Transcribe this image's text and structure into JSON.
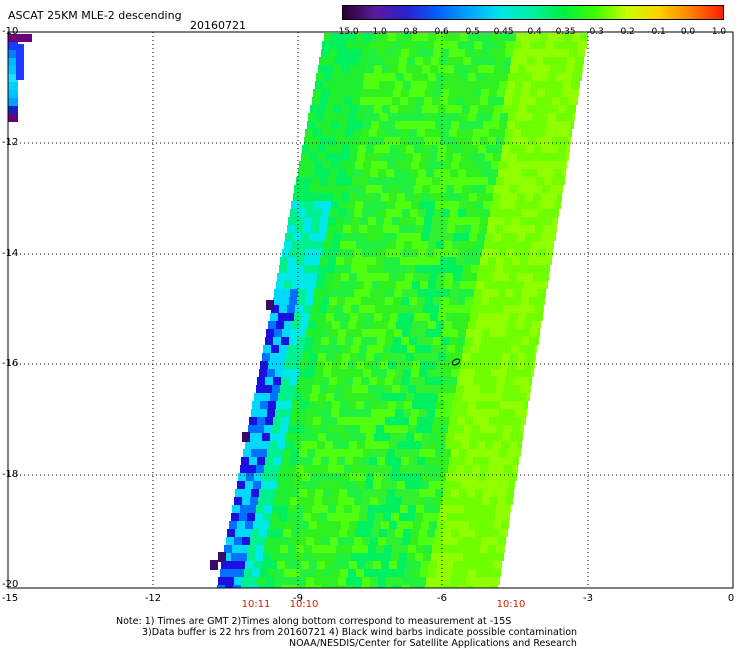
{
  "header": {
    "title": "ASCAT 25KM MLE-2 descending",
    "date": "20160721"
  },
  "colorbar": {
    "labels": [
      "-15.0",
      "-1.0",
      "-0.8",
      "-0.6",
      "-0.5",
      "-0.45",
      "-0.4",
      "-0.35",
      "-0.3",
      "-0.2",
      "-0.1",
      "0.0",
      "1.0"
    ],
    "colors": [
      "#2a0033",
      "#5a1a9a",
      "#2a20d0",
      "#0060ff",
      "#00a8ff",
      "#00e6e6",
      "#00f0a0",
      "#00f040",
      "#40ff00",
      "#c8ff00",
      "#ffd000",
      "#ff8000",
      "#ff2000"
    ]
  },
  "axes": {
    "y_ticks": [
      "-10",
      "-12",
      "-14",
      "-16",
      "-18",
      "-20"
    ],
    "x_ticks": [
      "-15",
      "-12",
      "-9",
      "-6",
      "-3",
      "0"
    ],
    "time_labels": [
      "10:11",
      "10:10",
      "10:10"
    ]
  },
  "notes": {
    "line1": "Note: 1) Times are GMT 2)Times along bottom correspond to measurement at -15S",
    "line2": "3)Data buffer is 22 hrs from 20160721 4) Black wind barbs indicate possible contamination",
    "line3": "NOAA/NESDIS/Center for Satellite Applications and Research"
  }
}
